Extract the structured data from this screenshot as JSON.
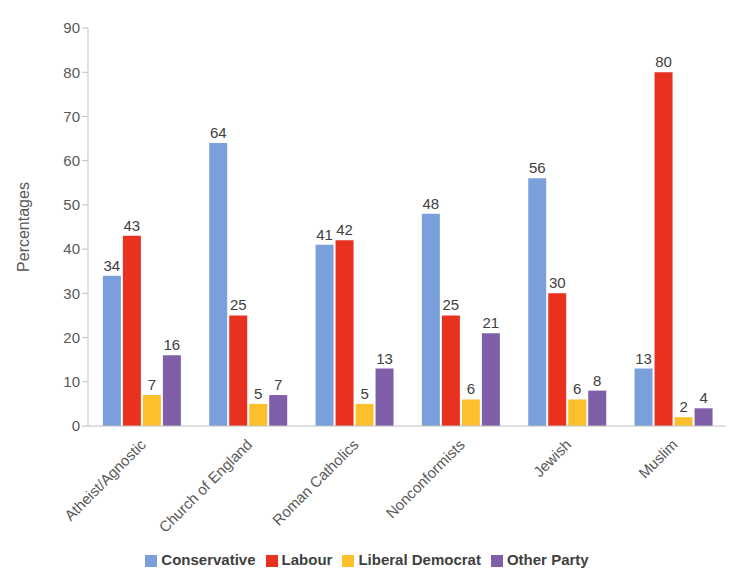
{
  "chart_data": {
    "type": "bar",
    "ylabel": "Percentages",
    "categories": [
      "Atheist/Agnostic",
      "Church of England",
      "Roman Catholics",
      "Nonconformists",
      "Jewish",
      "Muslim"
    ],
    "series": [
      {
        "name": "Conservative",
        "color": "#7aa0dc",
        "values": [
          34,
          64,
          41,
          48,
          56,
          13
        ]
      },
      {
        "name": "Labour",
        "color": "#e8321f",
        "values": [
          43,
          25,
          42,
          25,
          30,
          80
        ]
      },
      {
        "name": "Liberal Democrat",
        "color": "#fcc02c",
        "values": [
          7,
          5,
          5,
          6,
          6,
          2
        ]
      },
      {
        "name": "Other Party",
        "color": "#7f5fa8",
        "values": [
          16,
          7,
          13,
          21,
          8,
          4
        ]
      }
    ],
    "ylim": [
      0,
      90
    ],
    "yticks": [
      0,
      10,
      20,
      30,
      40,
      50,
      60,
      70,
      80,
      90
    ],
    "grid": false,
    "legend": "bottom",
    "data_labels": true
  }
}
